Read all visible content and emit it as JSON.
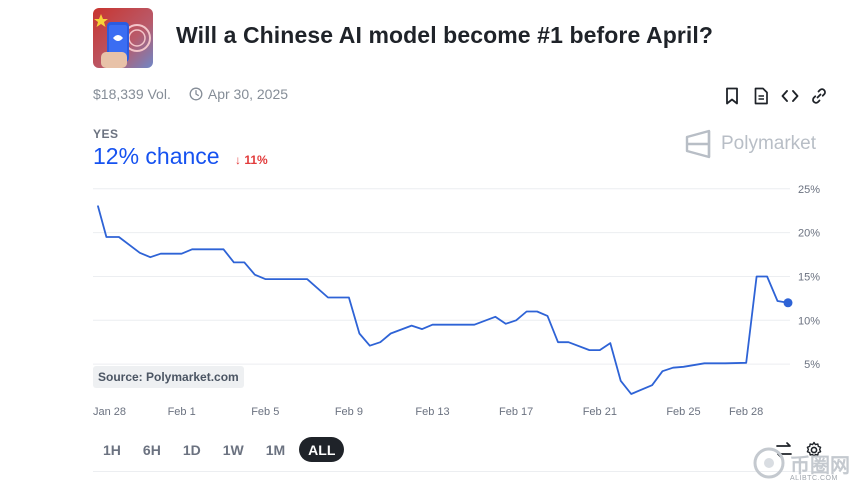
{
  "market": {
    "title": "Will a Chinese AI model become #1 before April?",
    "volume": "$18,339 Vol.",
    "end_date": "Apr 30, 2025",
    "outcome": "YES",
    "chance": "12% chance",
    "change": "11%",
    "change_direction": "down",
    "brand": "Polymarket",
    "source": "Source: Polymarket.com"
  },
  "actions": [
    {
      "icon": "bookmark-icon"
    },
    {
      "icon": "document-icon"
    },
    {
      "icon": "embed-code-icon"
    },
    {
      "icon": "link-icon"
    }
  ],
  "time_ranges": [
    {
      "label": "1H",
      "active": false
    },
    {
      "label": "6H",
      "active": false
    },
    {
      "label": "1D",
      "active": false
    },
    {
      "label": "1W",
      "active": false
    },
    {
      "label": "1M",
      "active": false
    },
    {
      "label": "ALL",
      "active": true
    }
  ],
  "watermark": {
    "text": "币圈网",
    "sub": "ALIBTC.COM"
  },
  "colors": {
    "accent": "#1652f0",
    "line": "#2e63d6",
    "down": "#e23b3b",
    "text": "#1f2329",
    "muted": "#858d97"
  },
  "chart_data": {
    "type": "line",
    "x_tick_labels": [
      "Jan 28",
      "Feb 1",
      "Feb 5",
      "Feb 9",
      "Feb 13",
      "Feb 17",
      "Feb 21",
      "Feb 25",
      "Feb 28"
    ],
    "y_tick_labels": [
      "25%",
      "20%",
      "15%",
      "10%",
      "5%"
    ],
    "y_ticks": [
      25,
      20,
      15,
      10,
      5
    ],
    "ylim": [
      0,
      26
    ],
    "xlim_days": [
      0,
      33
    ],
    "series": [
      {
        "points": [
          [
            0,
            23.0
          ],
          [
            0.4,
            19.5
          ],
          [
            1.0,
            19.5
          ],
          [
            2.0,
            17.7
          ],
          [
            2.5,
            17.2
          ],
          [
            3.0,
            17.6
          ],
          [
            4.0,
            17.6
          ],
          [
            4.5,
            18.1
          ],
          [
            6.0,
            18.1
          ],
          [
            6.5,
            16.6
          ],
          [
            7.0,
            16.6
          ],
          [
            7.5,
            15.2
          ],
          [
            8.0,
            14.7
          ],
          [
            10.0,
            14.7
          ],
          [
            11.0,
            12.6
          ],
          [
            12.0,
            12.6
          ],
          [
            12.5,
            8.5
          ],
          [
            13.0,
            7.1
          ],
          [
            13.5,
            7.5
          ],
          [
            14.0,
            8.5
          ],
          [
            15.0,
            9.4
          ],
          [
            15.5,
            9.0
          ],
          [
            16.0,
            9.5
          ],
          [
            18.0,
            9.5
          ],
          [
            19.0,
            10.4
          ],
          [
            19.5,
            9.6
          ],
          [
            20.0,
            10.0
          ],
          [
            20.5,
            11.0
          ],
          [
            21.0,
            11.0
          ],
          [
            21.5,
            10.5
          ],
          [
            22.0,
            7.5
          ],
          [
            22.5,
            7.5
          ],
          [
            23.5,
            6.6
          ],
          [
            24.0,
            6.6
          ],
          [
            24.5,
            7.4
          ],
          [
            25.0,
            3.1
          ],
          [
            25.5,
            1.6
          ],
          [
            26.5,
            2.6
          ],
          [
            27.0,
            4.2
          ],
          [
            27.5,
            4.6
          ],
          [
            28.0,
            4.7
          ],
          [
            29.0,
            5.1
          ],
          [
            30.0,
            5.1
          ],
          [
            31.0,
            5.15
          ],
          [
            31.5,
            15.0
          ],
          [
            32.0,
            15.0
          ],
          [
            32.5,
            12.2
          ],
          [
            33.0,
            12.0
          ]
        ]
      }
    ],
    "grid": true,
    "legend": "none"
  }
}
